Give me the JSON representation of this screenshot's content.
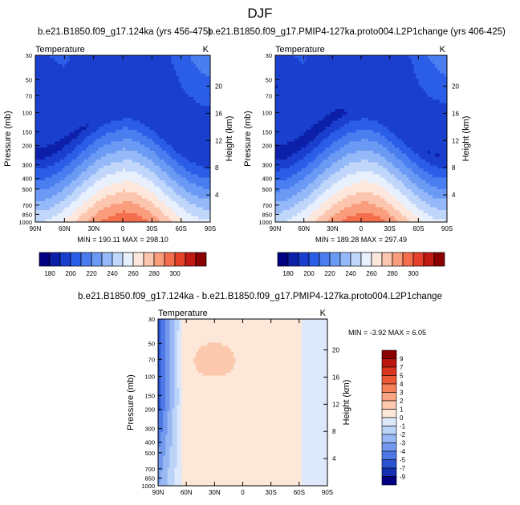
{
  "page": {
    "season": "DJF",
    "panel1_title": "b.e21.B1850.f09_g17.124ka (yrs 456-475)",
    "panel2_title": "b.e21.B1850.f09_g17.PMIP4-127ka.proto004.L2P1change (yrs 406-425)",
    "diff_title": "b.e21.B1850.f09_g17.124ka - b.e21.B1850.f09_g17.PMIP4-127ka.proto004.L2P1change"
  },
  "chart_data": [
    {
      "type": "contour",
      "id": "p1",
      "title": "Temperature",
      "units": "K",
      "xlabel": "",
      "ylabel": "Pressure (mb)",
      "ylabel_right": "Height (km)",
      "x_ticks": [
        "90N",
        "60N",
        "30N",
        "0",
        "30S",
        "60S",
        "90S"
      ],
      "x_range": [
        90,
        -90
      ],
      "y_ticks": [
        "30",
        "50",
        "70",
        "100",
        "150",
        "200",
        "300",
        "400",
        "500",
        "700",
        "850",
        "1000"
      ],
      "y_range": [
        30,
        1000
      ],
      "y_right_ticks": [
        "20",
        "16",
        "12",
        "8",
        "4"
      ],
      "levels": [
        180,
        190,
        200,
        210,
        220,
        230,
        240,
        250,
        260,
        270,
        280,
        290,
        300
      ],
      "min_label": "MIN = 190.11",
      "max_label": "MAX = 298.10",
      "min": 190.11,
      "max": 298.1
    },
    {
      "type": "contour",
      "id": "p2",
      "title": "",
      "units": "K",
      "xlabel": "",
      "ylabel": "Pressure (mb)",
      "ylabel_right": "Height (km)",
      "x_ticks": [
        "90N",
        "60N",
        "30N",
        "0",
        "30S",
        "60S",
        "90S"
      ],
      "x_range": [
        90,
        -90
      ],
      "y_ticks": [
        "30",
        "50",
        "70",
        "100",
        "150",
        "200",
        "300",
        "400",
        "500",
        "700",
        "850",
        "1000"
      ],
      "y_range": [
        30,
        1000
      ],
      "y_right_ticks": [
        "20",
        "16",
        "12",
        "8",
        "4"
      ],
      "levels": [
        180,
        190,
        200,
        210,
        220,
        230,
        240,
        250,
        260,
        270,
        280,
        290,
        300
      ],
      "min_label": "MIN = 189.28",
      "max_label": "MAX = 297.49",
      "min": 189.28,
      "max": 297.49
    },
    {
      "type": "contour",
      "id": "p3",
      "title": "Temperature",
      "units": "K",
      "xlabel": "",
      "ylabel": "Pressure (mb)",
      "ylabel_right": "Height (km)",
      "x_ticks": [
        "90N",
        "60N",
        "30N",
        "0",
        "30S",
        "60S",
        "90S"
      ],
      "x_range": [
        90,
        -90
      ],
      "y_ticks": [
        "30",
        "50",
        "70",
        "100",
        "150",
        "200",
        "300",
        "400",
        "500",
        "700",
        "850",
        "1000"
      ],
      "y_range": [
        30,
        1000
      ],
      "y_right_ticks": [
        "20",
        "16",
        "12",
        "8",
        "4"
      ],
      "levels": [
        "9",
        "7",
        "5",
        "4",
        "3",
        "2",
        "1",
        "0",
        "-1",
        "-2",
        "-3",
        "-4",
        "-5",
        "-7",
        "-9"
      ],
      "min_label": "MIN =  -3.92",
      "max_label": "MAX =   6.05",
      "min": -3.92,
      "max": 6.05
    }
  ],
  "colors": {
    "temp_scale": [
      "#000080",
      "#0c1fa8",
      "#1a3fcf",
      "#2b5ee8",
      "#4a7ef0",
      "#6b9af5",
      "#95b9f8",
      "#c0d6fb",
      "#e8f0fd",
      "#fde7dc",
      "#fcc5ad",
      "#f99d7d",
      "#f46e4d",
      "#e5412a",
      "#c01a12",
      "#8b0000"
    ],
    "diff_scale": [
      "#8b0000",
      "#b81810",
      "#d9361f",
      "#ec5a35",
      "#f5805a",
      "#f9a482",
      "#fcc8ae",
      "#fde7d8",
      "#dde9fb",
      "#bcd3f8",
      "#98b8f4",
      "#7399ee",
      "#4d78e5",
      "#2a53d2",
      "#1430b0",
      "#000080"
    ]
  }
}
